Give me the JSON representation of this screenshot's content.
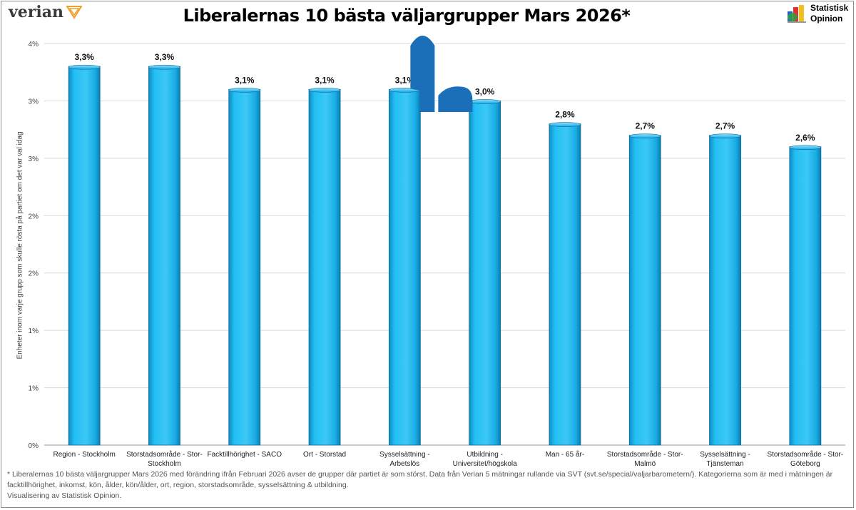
{
  "header": {
    "title": "Liberalernas 10 bästa väljargrupper Mars 2026*",
    "brand_left": "verian",
    "brand_right_line1": "Statistisk",
    "brand_right_line2": "Opinion",
    "brand_left_icon": "verian-triangle-logo-icon",
    "brand_right_icon": "statistisk-opinion-logo-icon"
  },
  "chart_data": {
    "type": "bar",
    "title": "Liberalernas 10 bästa väljargrupper Mars 2026*",
    "ylabel": "Enheter inom varje grupp som skulle rösta på partiet om det var val idag",
    "xlabel": "",
    "y_tick_labels": [
      "0%",
      "1%",
      "1%",
      "2%",
      "2%",
      "3%",
      "3%",
      "4%"
    ],
    "ylim": [
      0,
      3.5
    ],
    "y_tick_step": 0.5,
    "grid": true,
    "bar_color": "#1fb8f0",
    "categories": [
      "Region - Stockholm",
      "Storstadsområde - Stor-Stockholm",
      "Facktillhörighet - SACO",
      "Ort - Storstad",
      "Sysselsättning - Arbetslös",
      "Utbildning - Universitet/högskola",
      "Man - 65 år-",
      "Storstadsområde - Stor-Malmö",
      "Sysselsättning - Tjänsteman",
      "Storstadsområde - Stor-Göteborg"
    ],
    "category_lines": [
      [
        "Region - Stockholm"
      ],
      [
        "Storstadsområde - Stor-",
        "Stockholm"
      ],
      [
        "Facktillhörighet - SACO"
      ],
      [
        "Ort - Storstad"
      ],
      [
        "Sysselsättning -",
        "Arbetslös"
      ],
      [
        "Utbildning -",
        "Universitet/högskola"
      ],
      [
        "Man - 65 år-"
      ],
      [
        "Storstadsområde - Stor-",
        "Malmö"
      ],
      [
        "Sysselsättning -",
        "Tjänsteman"
      ],
      [
        "Storstadsområde - Stor-",
        "Göteborg"
      ]
    ],
    "values": [
      3.3,
      3.3,
      3.1,
      3.1,
      3.1,
      3.0,
      2.8,
      2.7,
      2.7,
      2.6
    ],
    "data_labels": [
      "3,3%",
      "3,3%",
      "3,1%",
      "3,1%",
      "3,1%",
      "3,0%",
      "2,8%",
      "2,7%",
      "2,7%",
      "2,6%"
    ],
    "change_marker": {
      "category_index": 4,
      "direction": "up",
      "color": "#1a6fb8"
    }
  },
  "footnote": {
    "line1": "* Liberalernas 10 bästa väljargrupper Mars 2026 med förändring ifrån Februari 2026 avser de grupper där partiet är som störst. Data från Verian 5 mätningar rullande via SVT (svt.se/special/valjarbarometern/). Kategorierna som är med i mätningen är facktillhörighet, inkomst, kön, ålder, kön/ålder, ort, region, storstadsområde, sysselsättning & utbildning.",
    "line2": "Visualisering av Statistisk Opinion."
  }
}
